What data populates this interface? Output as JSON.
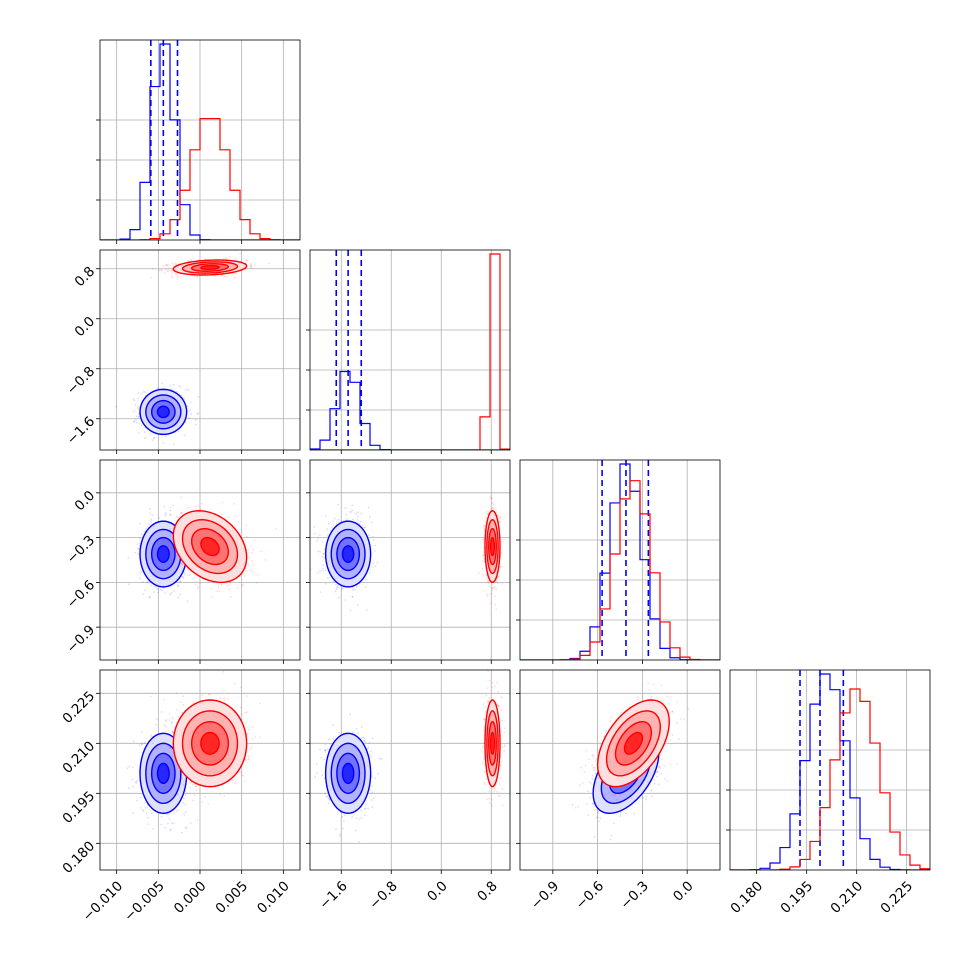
{
  "colors": {
    "series_a": "#0000ff",
    "series_b": "#ff0000"
  },
  "chart_data": {
    "type": "corner",
    "grid": true,
    "parameters": [
      {
        "range": [
          -0.012,
          0.012
        ],
        "ticks": [
          -0.01,
          -0.005,
          0.0,
          0.005,
          0.01
        ],
        "tick_labels": [
          "−0.010",
          "−0.005",
          "0.000",
          "0.005",
          "0.010"
        ]
      },
      {
        "range": [
          -2.1,
          1.1
        ],
        "ticks": [
          -1.6,
          -0.8,
          0.0,
          0.8
        ],
        "tick_labels": [
          "−1.6",
          "−0.8",
          "0.0",
          "0.8"
        ]
      },
      {
        "range": [
          -1.12,
          0.22
        ],
        "ticks": [
          -0.9,
          -0.6,
          -0.3,
          0.0
        ],
        "tick_labels": [
          "−0.9",
          "−0.6",
          "−0.3",
          "0.0"
        ]
      },
      {
        "range": [
          0.172,
          0.232
        ],
        "ticks": [
          0.18,
          0.195,
          0.21,
          0.225
        ],
        "tick_labels": [
          "0.180",
          "0.195",
          "0.210",
          "0.225"
        ]
      }
    ],
    "series": [
      {
        "color": "#0000ff",
        "mean": [
          -0.0044,
          -1.49,
          -0.41,
          0.201
        ],
        "sd": [
          0.0014,
          0.18,
          0.11,
          0.006
        ],
        "quantiles_drawn": true,
        "quantiles": [
          [
            -0.0059,
            -0.0044,
            -0.0027
          ],
          [
            -1.68,
            -1.49,
            -1.28
          ],
          [
            -0.57,
            -0.41,
            -0.26
          ],
          [
            0.193,
            0.199,
            0.206
          ]
        ],
        "corr": [
          [
            1,
            0.0,
            0.0,
            0.0
          ],
          [
            0.0,
            1,
            0.0,
            0.0
          ],
          [
            0.0,
            0.0,
            1,
            0.5
          ],
          [
            0.0,
            0.0,
            0.5,
            1
          ]
        ]
      },
      {
        "color": "#ff0000",
        "mean": [
          0.0012,
          0.82,
          -0.36,
          0.21
        ],
        "sd": [
          0.0022,
          0.06,
          0.12,
          0.0065
        ],
        "quantiles_drawn": false,
        "corr": [
          [
            1,
            0.2,
            -0.3,
            0.0
          ],
          [
            0.2,
            1,
            0.0,
            0.0
          ],
          [
            -0.3,
            0.0,
            1,
            0.5
          ],
          [
            0.0,
            0.0,
            0.5,
            1
          ]
        ]
      }
    ]
  }
}
